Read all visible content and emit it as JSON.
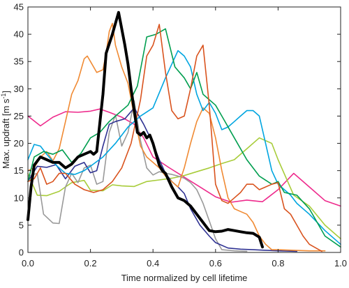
{
  "chart_data": {
    "type": "line",
    "title": "",
    "xlabel": "Time normalized by cell lifetime",
    "ylabel_main": "Max. updraft [m s",
    "ylabel_sup": "-1",
    "ylabel_end": "]",
    "xlim": [
      0,
      1
    ],
    "ylim": [
      0,
      45
    ],
    "xticks": [
      0.0,
      0.2,
      0.4,
      0.6,
      0.8,
      1.0
    ],
    "xtick_labels": [
      "0.0",
      "0.2",
      "0.4",
      "0.6",
      "0.8",
      "1.0"
    ],
    "yticks": [
      0,
      5,
      10,
      15,
      20,
      25,
      30,
      35,
      40,
      45
    ],
    "ytick_labels": [
      "0",
      "5",
      "10",
      "15",
      "20",
      "25",
      "30",
      "35",
      "40",
      "45"
    ],
    "grid": false,
    "series": [
      {
        "color": "#ee2a8c",
        "width": 1.6,
        "x": [
          0.0,
          0.04,
          0.08,
          0.12,
          0.16,
          0.2,
          0.23,
          0.26,
          0.3,
          0.34,
          0.37,
          0.4,
          0.45,
          0.5,
          0.55,
          0.6,
          0.65,
          0.7,
          0.75,
          0.8,
          0.85,
          0.9,
          0.95,
          1.0
        ],
        "y": [
          25.0,
          23.2,
          24.8,
          25.8,
          25.7,
          25.9,
          26.3,
          25.7,
          24.8,
          23.5,
          21.0,
          17.5,
          15.6,
          13.8,
          12.0,
          10.2,
          9.2,
          9.6,
          9.3,
          11.5,
          14.5,
          12.0,
          9.5,
          8.5
        ]
      },
      {
        "color": "#a8cc3a",
        "width": 1.6,
        "x": [
          0.0,
          0.03,
          0.06,
          0.1,
          0.14,
          0.18,
          0.2,
          0.24,
          0.27,
          0.3,
          0.34,
          0.38,
          0.42,
          0.46,
          0.5,
          0.54,
          0.58,
          0.62,
          0.66,
          0.7,
          0.74,
          0.78,
          0.8,
          0.85,
          0.9,
          0.95,
          1.0
        ],
        "y": [
          14.5,
          10.5,
          10.4,
          11.2,
          12.8,
          13.2,
          11.4,
          11.3,
          12.4,
          12.2,
          12.1,
          13.0,
          13.3,
          13.6,
          14.1,
          14.8,
          15.5,
          16.3,
          17.0,
          19.0,
          21.0,
          20.0,
          17.0,
          10.5,
          8.5,
          5.0,
          2.5
        ]
      },
      {
        "color": "#999999",
        "width": 1.6,
        "x": [
          0.0,
          0.03,
          0.05,
          0.08,
          0.1,
          0.12,
          0.14,
          0.16,
          0.18,
          0.2,
          0.22,
          0.24,
          0.26,
          0.28,
          0.3,
          0.32,
          0.34,
          0.36,
          0.38,
          0.4,
          0.42,
          0.44,
          0.46,
          0.48,
          0.5,
          0.52,
          0.54,
          0.56,
          0.58,
          0.6,
          0.62,
          0.66,
          0.7
        ],
        "y": [
          14.0,
          14.5,
          7.0,
          5.4,
          5.3,
          12.0,
          14.5,
          12.8,
          15.5,
          16.0,
          12.5,
          13.0,
          22.0,
          25.2,
          19.5,
          22.0,
          27.8,
          20.5,
          15.5,
          14.2,
          14.8,
          14.5,
          14.3,
          14.0,
          13.6,
          12.8,
          11.5,
          9.0,
          5.8,
          2.5,
          0.5,
          0.3,
          0.2
        ]
      },
      {
        "color": "#2e3192",
        "width": 1.6,
        "x": [
          0.0,
          0.03,
          0.06,
          0.09,
          0.12,
          0.15,
          0.18,
          0.2,
          0.22,
          0.24,
          0.26,
          0.28,
          0.31,
          0.34,
          0.37,
          0.4,
          0.42,
          0.44,
          0.46,
          0.48,
          0.5,
          0.52,
          0.55,
          0.58,
          0.6,
          0.64,
          0.68,
          0.72,
          0.76,
          0.8,
          0.86
        ],
        "y": [
          13.0,
          15.8,
          15.6,
          16.1,
          13.5,
          15.8,
          16.5,
          14.6,
          15.0,
          19.5,
          23.5,
          24.0,
          24.5,
          26.5,
          23.5,
          20.0,
          17.0,
          14.5,
          13.0,
          12.0,
          10.8,
          8.0,
          5.0,
          3.0,
          1.8,
          0.8,
          0.6,
          0.5,
          0.4,
          0.3,
          0.2
        ]
      },
      {
        "color": "#f08a33",
        "width": 1.6,
        "x": [
          0.0,
          0.02,
          0.04,
          0.06,
          0.08,
          0.1,
          0.12,
          0.14,
          0.16,
          0.18,
          0.19,
          0.2,
          0.22,
          0.24,
          0.25,
          0.26,
          0.27,
          0.28,
          0.3,
          0.32,
          0.34,
          0.36,
          0.38,
          0.4,
          0.42,
          0.44,
          0.46,
          0.48,
          0.5,
          0.52,
          0.54,
          0.56,
          0.58,
          0.6,
          0.62,
          0.64,
          0.66,
          0.68,
          0.7,
          0.72,
          0.74,
          0.76,
          0.78,
          0.8,
          0.85,
          0.9,
          0.95
        ],
        "y": [
          15.0,
          15.5,
          17.5,
          18.5,
          16.8,
          19.0,
          24.0,
          29.0,
          31.5,
          35.5,
          36.0,
          35.0,
          33.0,
          33.5,
          36.5,
          40.5,
          42.0,
          38.0,
          34.0,
          31.0,
          25.0,
          19.5,
          17.5,
          16.5,
          15.5,
          14.0,
          13.0,
          12.0,
          15.5,
          20.0,
          24.0,
          26.5,
          25.5,
          21.0,
          15.0,
          10.0,
          8.0,
          7.5,
          7.0,
          5.5,
          3.0,
          1.5,
          0.5,
          0.5,
          0.4,
          0.3,
          0.3
        ]
      },
      {
        "color": "#00a5e0",
        "width": 1.6,
        "x": [
          0.0,
          0.02,
          0.04,
          0.06,
          0.09,
          0.12,
          0.15,
          0.18,
          0.2,
          0.24,
          0.28,
          0.32,
          0.36,
          0.4,
          0.44,
          0.48,
          0.5,
          0.52,
          0.54,
          0.56,
          0.58,
          0.6,
          0.62,
          0.64,
          0.66,
          0.68,
          0.7,
          0.72,
          0.74,
          0.76,
          0.78,
          0.8,
          0.82,
          0.84,
          0.86,
          0.9,
          0.95,
          1.0
        ],
        "y": [
          17.0,
          19.8,
          19.5,
          18.0,
          16.0,
          14.5,
          14.3,
          15.0,
          15.8,
          17.5,
          20.0,
          23.0,
          25.0,
          26.5,
          32.0,
          37.0,
          36.0,
          34.0,
          29.0,
          26.0,
          27.5,
          25.5,
          22.5,
          23.0,
          24.0,
          25.0,
          26.0,
          26.0,
          25.0,
          20.0,
          15.0,
          12.5,
          11.5,
          10.5,
          9.0,
          7.0,
          4.0,
          1.5
        ]
      },
      {
        "color": "#009e4f",
        "width": 1.6,
        "x": [
          0.0,
          0.02,
          0.05,
          0.08,
          0.11,
          0.14,
          0.17,
          0.2,
          0.23,
          0.26,
          0.29,
          0.32,
          0.35,
          0.38,
          0.41,
          0.44,
          0.47,
          0.5,
          0.52,
          0.54,
          0.56,
          0.58,
          0.6,
          0.62,
          0.66,
          0.7,
          0.74,
          0.78,
          0.8,
          0.82,
          0.86,
          0.9,
          0.95,
          1.0
        ],
        "y": [
          13.0,
          17.5,
          18.5,
          18.0,
          18.8,
          16.5,
          18.2,
          21.0,
          22.0,
          24.0,
          25.5,
          27.0,
          30.5,
          39.5,
          40.0,
          41.0,
          34.0,
          32.0,
          30.0,
          33.0,
          29.0,
          28.0,
          27.0,
          25.0,
          21.0,
          17.0,
          14.0,
          12.5,
          13.0,
          11.0,
          10.5,
          8.0,
          3.0,
          1.0
        ]
      },
      {
        "color": "#d9531e",
        "width": 1.6,
        "x": [
          0.0,
          0.02,
          0.04,
          0.06,
          0.08,
          0.1,
          0.12,
          0.15,
          0.18,
          0.21,
          0.24,
          0.27,
          0.3,
          0.33,
          0.36,
          0.38,
          0.4,
          0.42,
          0.44,
          0.46,
          0.48,
          0.5,
          0.52,
          0.54,
          0.56,
          0.58,
          0.6,
          0.62,
          0.64,
          0.66,
          0.68,
          0.7,
          0.72,
          0.74,
          0.76,
          0.78,
          0.8,
          0.82,
          0.84,
          0.86,
          0.88,
          0.9,
          0.94
        ],
        "y": [
          13.0,
          13.5,
          15.5,
          12.5,
          13.0,
          14.5,
          14.5,
          12.5,
          11.5,
          11.0,
          11.5,
          13.0,
          15.5,
          20.0,
          28.0,
          36.0,
          38.0,
          41.8,
          33.0,
          26.0,
          24.5,
          25.0,
          30.0,
          36.0,
          38.0,
          27.0,
          12.5,
          9.5,
          9.0,
          10.0,
          11.0,
          12.5,
          12.5,
          11.5,
          12.0,
          12.5,
          12.8,
          8.0,
          7.0,
          5.0,
          3.0,
          1.5,
          0.2
        ]
      },
      {
        "color": "#000000",
        "width": 4,
        "x": [
          0.0,
          0.01,
          0.02,
          0.04,
          0.06,
          0.08,
          0.1,
          0.12,
          0.14,
          0.16,
          0.18,
          0.2,
          0.21,
          0.22,
          0.24,
          0.25,
          0.27,
          0.28,
          0.29,
          0.3,
          0.31,
          0.32,
          0.33,
          0.34,
          0.35,
          0.36,
          0.37,
          0.38,
          0.39,
          0.4,
          0.41,
          0.42,
          0.43,
          0.44,
          0.46,
          0.48,
          0.5,
          0.52,
          0.54,
          0.56,
          0.58,
          0.6,
          0.62,
          0.64,
          0.66,
          0.68,
          0.7,
          0.72,
          0.74,
          0.75
        ],
        "y": [
          6.0,
          12.0,
          16.0,
          17.5,
          17.0,
          16.5,
          16.5,
          15.5,
          16.2,
          17.5,
          18.0,
          18.5,
          18.0,
          18.5,
          29.0,
          36.5,
          40.0,
          42.0,
          44.0,
          41.0,
          38.0,
          34.5,
          30.0,
          26.0,
          22.0,
          21.5,
          22.0,
          21.0,
          21.5,
          20.0,
          18.0,
          16.0,
          15.0,
          14.5,
          12.0,
          10.0,
          9.5,
          8.5,
          7.0,
          5.5,
          4.0,
          3.8,
          3.9,
          4.2,
          4.0,
          3.8,
          3.6,
          3.5,
          2.8,
          1.0
        ]
      }
    ]
  }
}
